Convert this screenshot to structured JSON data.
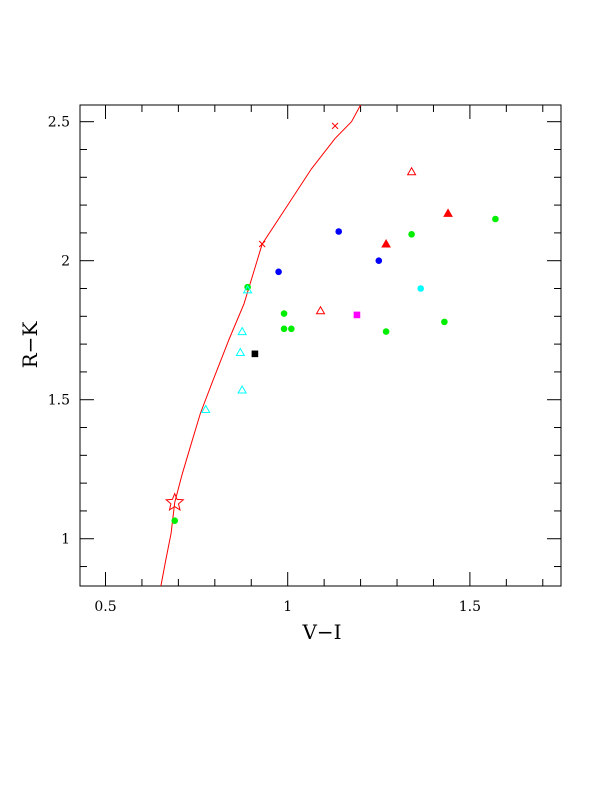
{
  "chart_data": {
    "type": "scatter",
    "title": "",
    "xlabel": "V−I",
    "ylabel": "R−K",
    "xlim": [
      0.43,
      1.75
    ],
    "ylim": [
      0.83,
      2.56
    ],
    "xticks": [
      {
        "value": 0.5,
        "label": "0.5"
      },
      {
        "value": 1.0,
        "label": "1"
      },
      {
        "value": 1.5,
        "label": "1.5"
      }
    ],
    "yticks": [
      {
        "value": 1.0,
        "label": "1"
      },
      {
        "value": 1.5,
        "label": "1.5"
      },
      {
        "value": 2.0,
        "label": "2"
      },
      {
        "value": 2.5,
        "label": "2.5"
      }
    ],
    "grid": false,
    "series": [
      {
        "marker": "filled-circle",
        "color": "#00ee00",
        "points": [
          [
            0.89,
            1.905
          ],
          [
            0.99,
            1.81
          ],
          [
            0.99,
            1.755
          ],
          [
            1.01,
            1.755
          ],
          [
            1.27,
            1.745
          ],
          [
            1.34,
            2.095
          ],
          [
            1.43,
            1.78
          ],
          [
            1.57,
            2.15
          ],
          [
            0.69,
            1.065
          ]
        ]
      },
      {
        "marker": "filled-circle",
        "color": "#0000ff",
        "points": [
          [
            0.975,
            1.96
          ],
          [
            1.14,
            2.105
          ],
          [
            1.25,
            2.0
          ]
        ]
      },
      {
        "marker": "filled-circle",
        "color": "#00ffff",
        "points": [
          [
            1.365,
            1.9
          ]
        ]
      },
      {
        "marker": "filled-triangle",
        "color": "#ff0000",
        "points": [
          [
            1.27,
            2.06
          ],
          [
            1.44,
            2.17
          ]
        ]
      },
      {
        "marker": "open-triangle",
        "color": "#ff0000",
        "points": [
          [
            1.09,
            1.82
          ],
          [
            1.34,
            2.32
          ]
        ]
      },
      {
        "marker": "open-triangle",
        "color": "#00ffff",
        "points": [
          [
            0.775,
            1.465
          ],
          [
            0.875,
            1.535
          ],
          [
            0.87,
            1.67
          ],
          [
            0.875,
            1.745
          ],
          [
            0.89,
            1.895
          ]
        ]
      },
      {
        "marker": "filled-square",
        "color": "#000000",
        "points": [
          [
            0.91,
            1.665
          ]
        ]
      },
      {
        "marker": "filled-square",
        "color": "#ff00ff",
        "points": [
          [
            1.19,
            1.805
          ]
        ]
      }
    ],
    "curve": {
      "color": "#ff0000",
      "points": [
        [
          0.652,
          0.83
        ],
        [
          0.665,
          0.92
        ],
        [
          0.68,
          1.02
        ],
        [
          0.69,
          1.13
        ],
        [
          0.71,
          1.23
        ],
        [
          0.735,
          1.34
        ],
        [
          0.76,
          1.45
        ],
        [
          0.795,
          1.57
        ],
        [
          0.84,
          1.72
        ],
        [
          0.88,
          1.845
        ],
        [
          0.93,
          2.06
        ],
        [
          1.0,
          2.2
        ],
        [
          1.065,
          2.33
        ],
        [
          1.13,
          2.44
        ],
        [
          1.175,
          2.5
        ],
        [
          1.2,
          2.56
        ]
      ],
      "cross_markers": [
        [
          0.93,
          2.06
        ],
        [
          1.13,
          2.485
        ]
      ],
      "star_marker": [
        0.69,
        1.13
      ]
    }
  }
}
